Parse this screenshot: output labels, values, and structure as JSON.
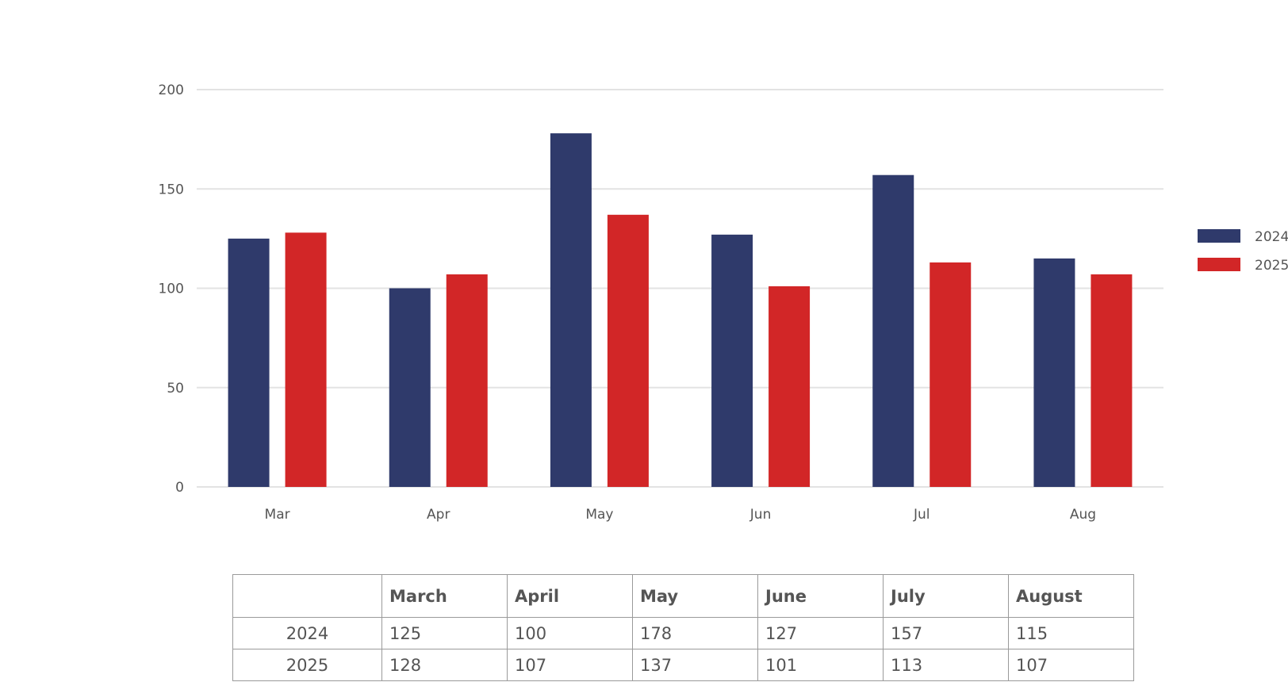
{
  "chart_data": {
    "type": "bar",
    "categories": [
      "Mar",
      "Apr",
      "May",
      "Jun",
      "Jul",
      "Aug"
    ],
    "series": [
      {
        "name": "2024",
        "color": "#2f3a6b",
        "values": [
          125,
          100,
          178,
          127,
          157,
          115
        ]
      },
      {
        "name": "2025",
        "color": "#d22627",
        "values": [
          128,
          107,
          137,
          101,
          113,
          107
        ]
      }
    ],
    "ylim": [
      0,
      200
    ],
    "yticks": [
      0,
      50,
      100,
      150,
      200
    ],
    "grid": true,
    "legend": "right"
  },
  "table": {
    "headers": [
      "",
      "March",
      "April",
      "May",
      "June",
      "July",
      "August"
    ],
    "rows": [
      {
        "label": "2024",
        "values": [
          "125",
          "100",
          "178",
          "127",
          "157",
          "115"
        ]
      },
      {
        "label": "2025",
        "values": [
          "128",
          "107",
          "137",
          "101",
          "113",
          "107"
        ]
      }
    ]
  }
}
